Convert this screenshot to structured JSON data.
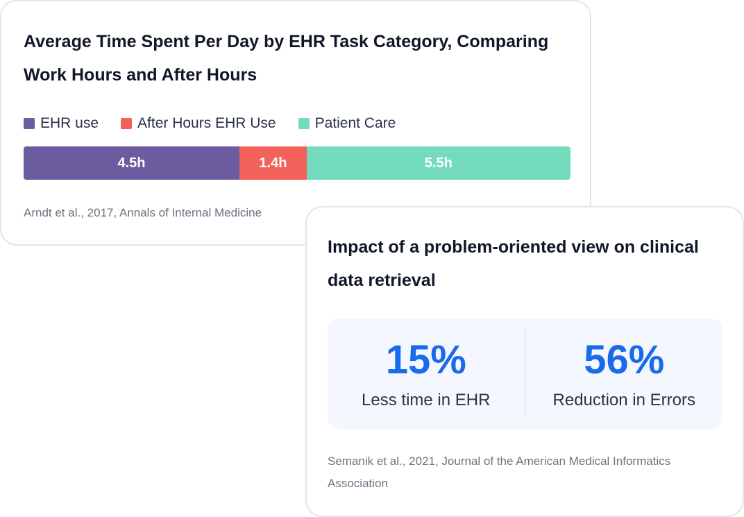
{
  "ehr_card": {
    "title": "Average Time Spent Per Day by EHR Task Category, Comparing Work Hours and After Hours",
    "source": "Arndt et al., 2017, Annals of Internal Medicine"
  },
  "chart_data": {
    "type": "bar",
    "orientation": "horizontal-stacked",
    "title": "Average Time Spent Per Day by EHR Task Category, Comparing Work Hours and After Hours",
    "legend_position": "top-left",
    "grid": false,
    "series": [
      {
        "name": "EHR use",
        "value": 4.5,
        "label": "4.5h",
        "color": "#6a5c9f"
      },
      {
        "name": "After Hours EHR Use",
        "value": 1.4,
        "label": "1.4h",
        "color": "#f3625a"
      },
      {
        "name": "Patient Care",
        "value": 5.5,
        "label": "5.5h",
        "color": "#74dcbd"
      }
    ]
  },
  "impact_card": {
    "title": "Impact of a problem-oriented view on clinical data retrieval",
    "stats": [
      {
        "value": "15%",
        "label": "Less time in EHR"
      },
      {
        "value": "56%",
        "label": "Reduction in Errors"
      }
    ],
    "source": "Semanik et al., 2021, Journal of the American Medical Informatics Association",
    "accent_color": "#1a6bea"
  }
}
